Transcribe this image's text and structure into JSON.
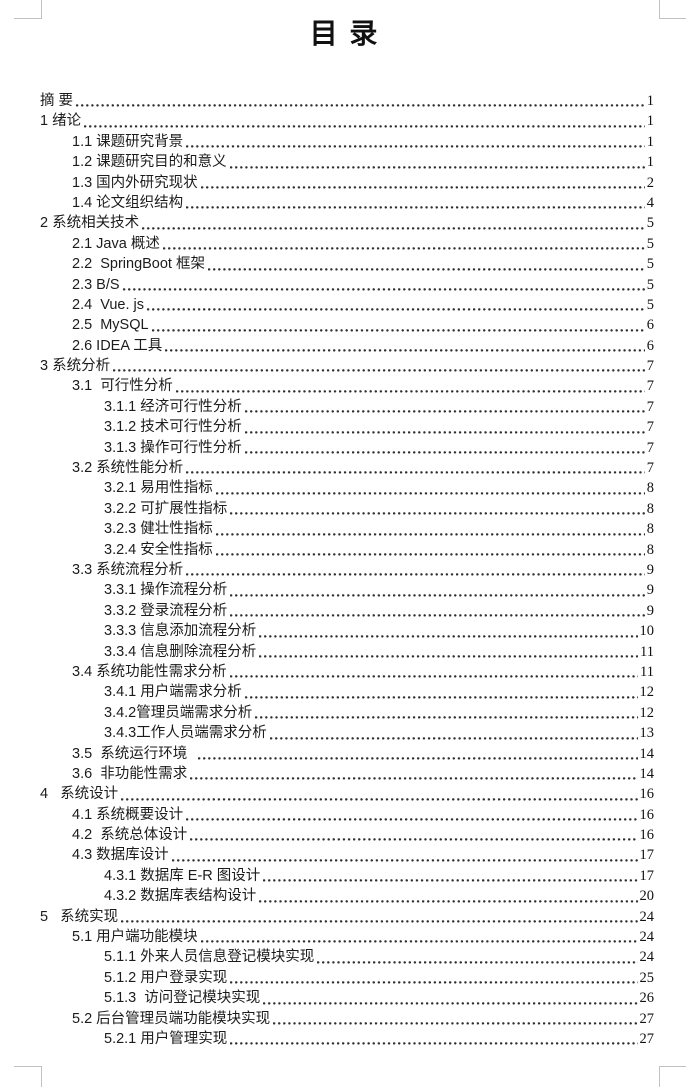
{
  "header": {
    "title": "目 录"
  },
  "toc": {
    "entries": [
      {
        "label": "摘 要",
        "page": "1",
        "level": 0
      },
      {
        "label": "1 绪论",
        "page": "1",
        "level": 0
      },
      {
        "label": "1.1 课题研究背景",
        "page": "1",
        "level": 1
      },
      {
        "label": "1.2 课题研究目的和意义",
        "page": "1",
        "level": 1
      },
      {
        "label": "1.3 国内外研究现状",
        "page": "2",
        "level": 1
      },
      {
        "label": "1.4 论文组织结构",
        "page": "4",
        "level": 1
      },
      {
        "label": "2 系统相关技术",
        "page": "5",
        "level": 0
      },
      {
        "label": "2.1 Java 概述",
        "page": "5",
        "level": 1
      },
      {
        "label": "2.2  SpringBoot 框架",
        "page": "5",
        "level": 1
      },
      {
        "label": "2.3 B/S",
        "page": "5",
        "level": 1
      },
      {
        "label": "2.4  Vue. js",
        "page": "5",
        "level": 1
      },
      {
        "label": "2.5  MySQL",
        "page": "6",
        "level": 1
      },
      {
        "label": "2.6 IDEA 工具",
        "page": "6",
        "level": 1
      },
      {
        "label": "3 系统分析",
        "page": "7",
        "level": 0
      },
      {
        "label": "3.1  可行性分析",
        "page": "7",
        "level": 1
      },
      {
        "label": "3.1.1 经济可行性分析",
        "page": "7",
        "level": 2
      },
      {
        "label": "3.1.2 技术可行性分析",
        "page": "7",
        "level": 2
      },
      {
        "label": "3.1.3 操作可行性分析",
        "page": "7",
        "level": 2
      },
      {
        "label": "3.2 系统性能分析",
        "page": "7",
        "level": 1
      },
      {
        "label": "3.2.1 易用性指标",
        "page": "8",
        "level": 2
      },
      {
        "label": "3.2.2 可扩展性指标",
        "page": "8",
        "level": 2
      },
      {
        "label": "3.2.3 健壮性指标",
        "page": "8",
        "level": 2
      },
      {
        "label": "3.2.4 安全性指标",
        "page": "8",
        "level": 2
      },
      {
        "label": "3.3 系统流程分析",
        "page": "9",
        "level": 1
      },
      {
        "label": "3.3.1 操作流程分析",
        "page": "9",
        "level": 2
      },
      {
        "label": "3.3.2 登录流程分析",
        "page": "9",
        "level": 2
      },
      {
        "label": "3.3.3 信息添加流程分析",
        "page": "10",
        "level": 2
      },
      {
        "label": "3.3.4 信息删除流程分析",
        "page": "11",
        "level": 2
      },
      {
        "label": "3.4 系统功能性需求分析",
        "page": "11",
        "level": 1
      },
      {
        "label": "3.4.1 用户端需求分析",
        "page": "12",
        "level": 2
      },
      {
        "label": "3.4.2管理员端需求分析",
        "page": "12",
        "level": 2
      },
      {
        "label": "3.4.3工作人员端需求分析",
        "page": "13",
        "level": 2
      },
      {
        "label": "3.5  系统运行环境  ",
        "page": "14",
        "level": 1
      },
      {
        "label": "3.6  非功能性需求",
        "page": "14",
        "level": 1
      },
      {
        "label": "4   系统设计",
        "page": "16",
        "level": 0
      },
      {
        "label": "4.1 系统概要设计",
        "page": "16",
        "level": 1
      },
      {
        "label": "4.2  系统总体设计",
        "page": "16",
        "level": 1
      },
      {
        "label": "4.3 数据库设计",
        "page": "17",
        "level": 1
      },
      {
        "label": "4.3.1 数据库 E-R 图设计",
        "page": "17",
        "level": 2
      },
      {
        "label": "4.3.2 数据库表结构设计",
        "page": "20",
        "level": 2
      },
      {
        "label": "5   系统实现",
        "page": "24",
        "level": 0
      },
      {
        "label": "5.1 用户端功能模块",
        "page": "24",
        "level": 1
      },
      {
        "label": "5.1.1 外来人员信息登记模块实现",
        "page": "24",
        "level": 2
      },
      {
        "label": "5.1.2 用户登录实现",
        "page": "25",
        "level": 2
      },
      {
        "label": "5.1.3  访问登记模块实现",
        "page": "26",
        "level": 2
      },
      {
        "label": "5.2 后台管理员端功能模块实现",
        "page": "27",
        "level": 1
      },
      {
        "label": "5.2.1 用户管理实现",
        "page": "27",
        "level": 2
      }
    ]
  }
}
